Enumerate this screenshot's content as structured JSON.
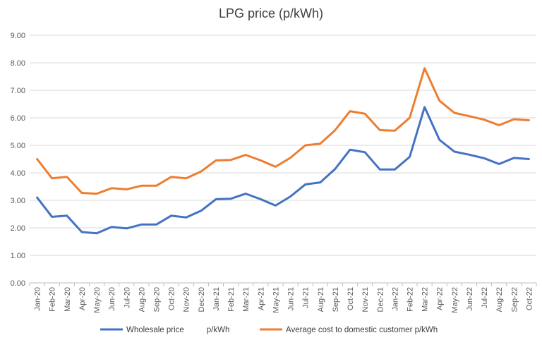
{
  "chart_data": {
    "type": "line",
    "title": "LPG price (p/kWh)",
    "xlabel": "",
    "ylabel": "",
    "ylim": [
      0,
      9
    ],
    "yticks": [
      "0.00",
      "1.00",
      "2.00",
      "3.00",
      "4.00",
      "5.00",
      "6.00",
      "7.00",
      "8.00",
      "9.00"
    ],
    "grid": true,
    "legend": "bottom",
    "categories": [
      "Jan-20",
      "Feb-20",
      "Mar-20",
      "Apr-20",
      "May-20",
      "Jun-20",
      "Jul-20",
      "Aug-20",
      "Sep-20",
      "Oct-20",
      "Nov-20",
      "Dec-20",
      "Jan-21",
      "Feb-21",
      "Mar-21",
      "Apr-21",
      "May-21",
      "Jun-21",
      "Jul-21",
      "Aug-21",
      "Sep-21",
      "Oct-21",
      "Nov-21",
      "Dec-21",
      "Jan-22",
      "Feb-22",
      "Mar-22",
      "Apr-22",
      "May-22",
      "Jun-22",
      "Jul-22",
      "Aug-22",
      "Sep-22",
      "Oct-22"
    ],
    "series": [
      {
        "name": "Wholesale price          p/kWh",
        "color": "#4472C4",
        "values": [
          3.1,
          2.4,
          2.44,
          1.85,
          1.8,
          2.03,
          1.98,
          2.12,
          2.12,
          2.44,
          2.38,
          2.62,
          3.04,
          3.06,
          3.24,
          3.04,
          2.81,
          3.14,
          3.58,
          3.65,
          4.14,
          4.84,
          4.75,
          4.12,
          4.12,
          4.58,
          6.39,
          5.2,
          4.77,
          4.66,
          4.53,
          4.32,
          4.54,
          4.5
        ]
      },
      {
        "name": "Average cost to domestic customer p/kWh",
        "color": "#ED7D31",
        "values": [
          4.5,
          3.8,
          3.85,
          3.27,
          3.24,
          3.44,
          3.4,
          3.53,
          3.53,
          3.85,
          3.8,
          4.05,
          4.45,
          4.47,
          4.65,
          4.45,
          4.22,
          4.55,
          5.0,
          5.06,
          5.55,
          6.24,
          6.15,
          5.55,
          5.53,
          6.0,
          7.8,
          6.62,
          6.18,
          6.06,
          5.93,
          5.73,
          5.95,
          5.91
        ]
      }
    ]
  }
}
